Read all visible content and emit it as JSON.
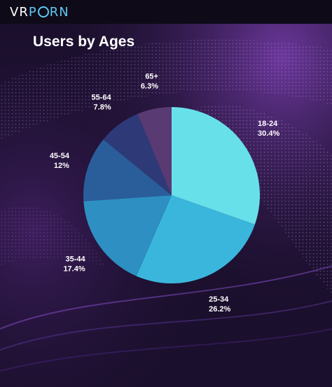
{
  "logo": {
    "prefix": "VR",
    "suffix": "RN"
  },
  "title": "Users by Ages",
  "colors": {
    "background": "#1a0f2c",
    "accent": "#5ec9f2"
  },
  "chart_data": {
    "type": "pie",
    "title": "Users by Ages",
    "categories": [
      "18-24",
      "25-34",
      "35-44",
      "45-54",
      "55-64",
      "65+"
    ],
    "values": [
      30.4,
      26.2,
      17.4,
      12,
      7.8,
      6.3
    ],
    "value_labels": [
      "30.4%",
      "26.2%",
      "17.4%",
      "12%",
      "7.8%",
      "6.3%"
    ],
    "colors": [
      "#68e0ea",
      "#3ab6dc",
      "#2d8fc2",
      "#2a5e9a",
      "#2e3a78",
      "#5a3a72"
    ],
    "legend": "none",
    "start": "top",
    "direction": "clockwise"
  }
}
